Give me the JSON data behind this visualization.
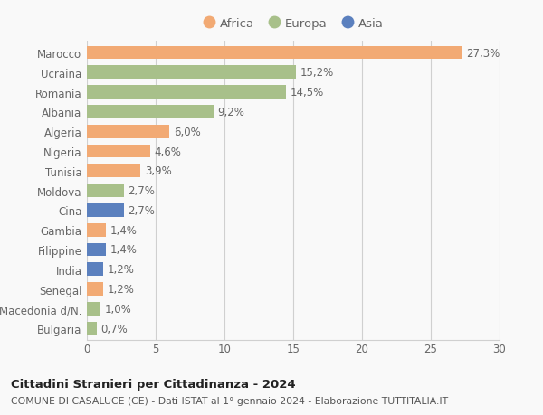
{
  "countries": [
    "Marocco",
    "Ucraina",
    "Romania",
    "Albania",
    "Algeria",
    "Nigeria",
    "Tunisia",
    "Moldova",
    "Cina",
    "Gambia",
    "Filippine",
    "India",
    "Senegal",
    "Macedonia d/N.",
    "Bulgaria"
  ],
  "values": [
    27.3,
    15.2,
    14.5,
    9.2,
    6.0,
    4.6,
    3.9,
    2.7,
    2.7,
    1.4,
    1.4,
    1.2,
    1.2,
    1.0,
    0.7
  ],
  "labels": [
    "27,3%",
    "15,2%",
    "14,5%",
    "9,2%",
    "6,0%",
    "4,6%",
    "3,9%",
    "2,7%",
    "2,7%",
    "1,4%",
    "1,4%",
    "1,2%",
    "1,2%",
    "1,0%",
    "0,7%"
  ],
  "continents": [
    "Africa",
    "Europa",
    "Europa",
    "Europa",
    "Africa",
    "Africa",
    "Africa",
    "Europa",
    "Asia",
    "Africa",
    "Asia",
    "Asia",
    "Africa",
    "Europa",
    "Europa"
  ],
  "colors": {
    "Africa": "#F2AA74",
    "Europa": "#A8C08A",
    "Asia": "#5B80BE"
  },
  "legend_order": [
    "Africa",
    "Europa",
    "Asia"
  ],
  "xlim": [
    0,
    30
  ],
  "xticks": [
    0,
    5,
    10,
    15,
    20,
    25,
    30
  ],
  "title1": "Cittadini Stranieri per Cittadinanza - 2024",
  "title2": "COMUNE DI CASALUCE (CE) - Dati ISTAT al 1° gennaio 2024 - Elaborazione TUTTITALIA.IT",
  "background_color": "#f9f9f9",
  "grid_color": "#d0d0d0",
  "bar_height": 0.68,
  "label_fontsize": 8.5,
  "ytick_fontsize": 8.5,
  "xtick_fontsize": 8.5
}
